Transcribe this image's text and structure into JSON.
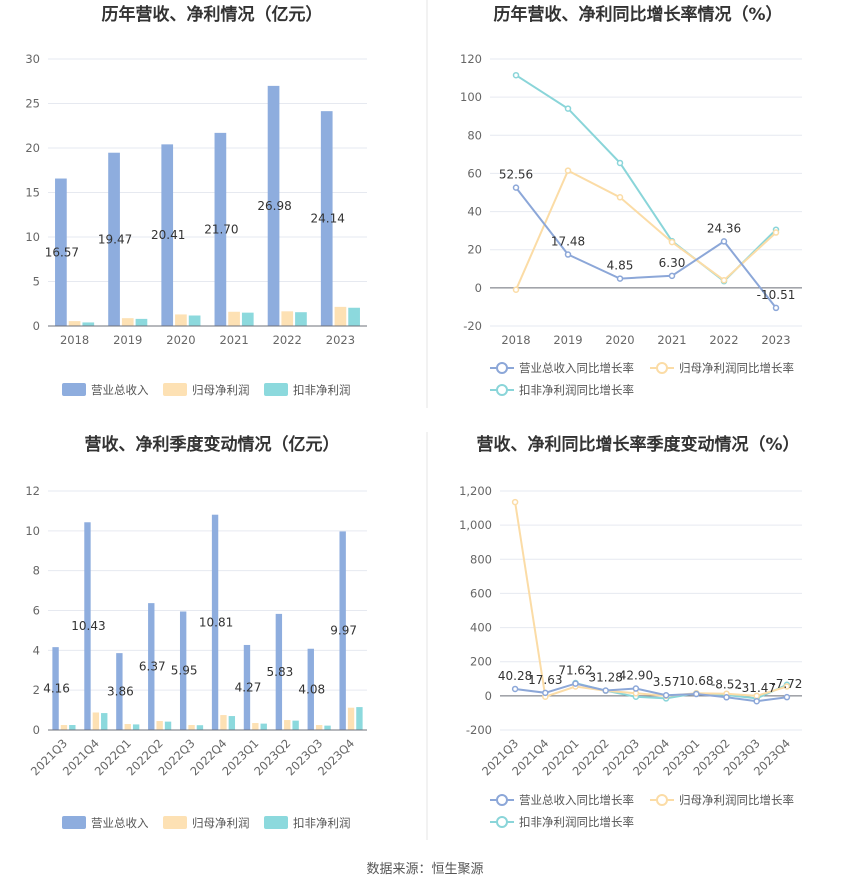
{
  "source_text": "数据来源：恒生聚源",
  "colors": {
    "revenue": "#8eadde",
    "parent": "#fde1b4",
    "deducted": "#8cd9dd",
    "revenue_line": "#8ca7d8",
    "parent_line": "#fbdca6",
    "deducted_line": "#8ad5d9",
    "grid": "#e6e9f0",
    "axis": "#6e7079",
    "divider": "#e6e6e6"
  },
  "chart_data": [
    {
      "id": "annual_amount",
      "type": "bar",
      "title": "历年营收、净利情况（亿元）",
      "categories": [
        "2018",
        "2019",
        "2020",
        "2021",
        "2022",
        "2023"
      ],
      "ylim": [
        0,
        30
      ],
      "yticks": [
        0,
        5,
        10,
        15,
        20,
        25,
        30
      ],
      "grid": true,
      "legend_position": "bottom",
      "series": [
        {
          "name": "营业总收入",
          "color_key": "revenue",
          "values": [
            16.57,
            19.47,
            20.41,
            21.7,
            26.98,
            24.14
          ],
          "labels": [
            "16.57",
            "19.47",
            "20.41",
            "21.70",
            "26.98",
            "24.14"
          ]
        },
        {
          "name": "归母净利润",
          "color_key": "parent",
          "values": [
            0.55,
            0.88,
            1.3,
            1.6,
            1.65,
            2.15
          ]
        },
        {
          "name": "扣非净利润",
          "color_key": "deducted",
          "values": [
            0.4,
            0.8,
            1.18,
            1.5,
            1.55,
            2.05
          ]
        }
      ]
    },
    {
      "id": "annual_growth",
      "type": "line",
      "title": "历年营收、净利同比增长率情况（%）",
      "categories": [
        "2018",
        "2019",
        "2020",
        "2021",
        "2022",
        "2023"
      ],
      "ylim": [
        -20,
        120
      ],
      "yticks": [
        -20,
        0,
        20,
        40,
        60,
        80,
        100,
        120
      ],
      "grid": true,
      "legend_position": "bottom",
      "series": [
        {
          "name": "营业总收入同比增长率",
          "color_key": "revenue_line",
          "values": [
            52.56,
            17.48,
            4.85,
            6.3,
            24.36,
            -10.51
          ],
          "labels": [
            "52.56",
            "17.48",
            "4.85",
            "6.30",
            "24.36",
            "-10.51"
          ]
        },
        {
          "name": "归母净利润同比增长率",
          "color_key": "parent_line",
          "values": [
            -1.0,
            61.5,
            47.5,
            24.0,
            4.0,
            29.0
          ]
        },
        {
          "name": "扣非净利润同比增长率",
          "color_key": "deducted_line",
          "values": [
            111.5,
            94.0,
            65.5,
            24.5,
            3.5,
            30.5
          ]
        }
      ]
    },
    {
      "id": "quarterly_amount",
      "type": "bar",
      "title": "营收、净利季度变动情况（亿元）",
      "categories": [
        "2021Q3",
        "2021Q4",
        "2022Q1",
        "2022Q2",
        "2022Q3",
        "2022Q4",
        "2023Q1",
        "2023Q2",
        "2023Q3",
        "2023Q4"
      ],
      "ylim": [
        0,
        12
      ],
      "yticks": [
        0,
        2,
        4,
        6,
        8,
        10,
        12
      ],
      "grid": true,
      "legend_position": "bottom",
      "series": [
        {
          "name": "营业总收入",
          "color_key": "revenue",
          "values": [
            4.16,
            10.43,
            3.86,
            6.37,
            5.95,
            10.81,
            4.27,
            5.83,
            4.08,
            9.97
          ],
          "labels": [
            "4.16",
            "10.43",
            "3.86",
            "6.37",
            "5.95",
            "10.81",
            "4.27",
            "5.83",
            "4.08",
            "9.97"
          ]
        },
        {
          "name": "归母净利润",
          "color_key": "parent",
          "values": [
            0.25,
            0.88,
            0.3,
            0.45,
            0.25,
            0.75,
            0.35,
            0.5,
            0.25,
            1.12
          ]
        },
        {
          "name": "扣非净利润",
          "color_key": "deducted",
          "values": [
            0.25,
            0.85,
            0.28,
            0.42,
            0.24,
            0.7,
            0.32,
            0.47,
            0.22,
            1.15
          ]
        }
      ]
    },
    {
      "id": "quarterly_growth",
      "type": "line",
      "title": "营收、净利同比增长率季度变动情况（%）",
      "categories": [
        "2021Q3",
        "2021Q4",
        "2022Q1",
        "2022Q2",
        "2022Q3",
        "2022Q4",
        "2023Q1",
        "2023Q2",
        "2023Q3",
        "2023Q4"
      ],
      "ylim": [
        -200,
        1200
      ],
      "yticks": [
        -200,
        0,
        200,
        400,
        600,
        800,
        1000,
        1200
      ],
      "ytick_labels": [
        "-200",
        "0",
        "200",
        "400",
        "600",
        "800",
        "1,000",
        "1,200"
      ],
      "grid": true,
      "legend_position": "bottom",
      "series": [
        {
          "name": "营业总收入同比增长率",
          "color_key": "revenue_line",
          "values": [
            40.28,
            17.63,
            71.62,
            31.28,
            42.9,
            3.57,
            10.68,
            -8.52,
            -31.47,
            -7.72
          ],
          "labels": [
            "40.28",
            "17.63",
            "71.62",
            "31.28",
            "42.90",
            "3.57",
            "10.68",
            "-8.52",
            "-31.47",
            "-7.72"
          ]
        },
        {
          "name": "归母净利润同比增长率",
          "color_key": "parent_line",
          "values": [
            1135,
            -5,
            55,
            30,
            15,
            0,
            15,
            12,
            0,
            55
          ]
        },
        {
          "name": "扣非净利润同比增长率",
          "color_key": "deducted_line",
          "values": [
            null,
            null,
            75,
            30,
            -5,
            -15,
            15,
            5,
            -15,
            65
          ]
        }
      ]
    }
  ]
}
